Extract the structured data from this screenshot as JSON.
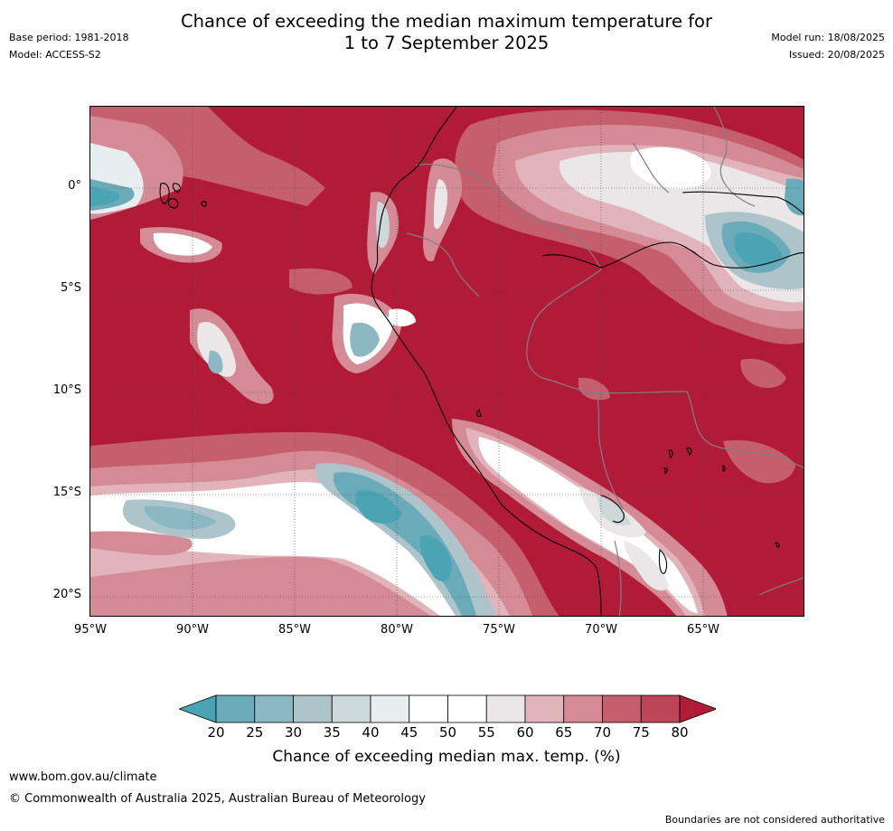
{
  "header": {
    "title_line1": "Chance of exceeding the median maximum temperature for",
    "title_line2": "1 to 7 September 2025",
    "base_period": "Base period: 1981-2018",
    "model": "Model: ACCESS-S2",
    "model_run": "Model run: 18/08/2025",
    "issued": "Issued: 20/08/2025"
  },
  "map": {
    "lat_labels": [
      "0°",
      "5°S",
      "10°S",
      "15°S",
      "20°S"
    ],
    "lon_labels": [
      "95°W",
      "90°W",
      "85°W",
      "80°W",
      "75°W",
      "70°W",
      "65°W"
    ],
    "background_color": "#b11b38"
  },
  "colorbar": {
    "ticks": [
      "20",
      "25",
      "30",
      "35",
      "40",
      "45",
      "50",
      "55",
      "60",
      "65",
      "70",
      "75",
      "80"
    ],
    "colors": [
      "#4ba4b4",
      "#6aabb9",
      "#8bb8c3",
      "#adc4ca",
      "#cdd8da",
      "#e8eef0",
      "#ffffff",
      "#ffffff",
      "#ebe7e8",
      "#e1b4bb",
      "#d58b96",
      "#c55f6e",
      "#bc4557",
      "#b11b38"
    ],
    "label": "Chance of exceeding median max. temp. (%)"
  },
  "footer": {
    "url": "www.bom.gov.au/climate",
    "copyright": "© Commonwealth of Australia 2025, Australian Bureau of Meteorology",
    "disclaimer": "Boundaries are not considered authoritative"
  }
}
